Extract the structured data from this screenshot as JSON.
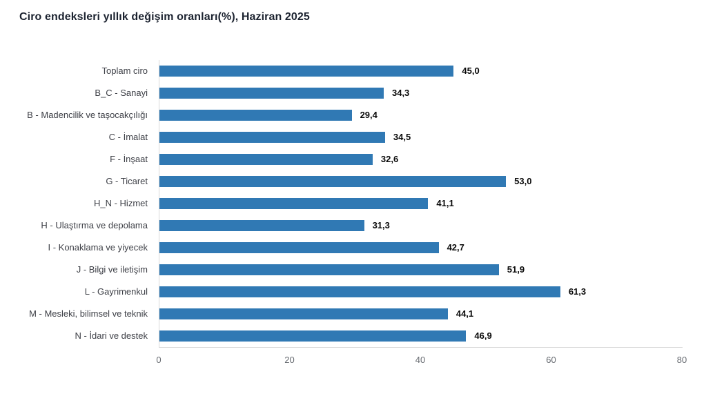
{
  "header": {
    "title": "Ciro endeksleri yıllık değişim oranları(%), Haziran 2025"
  },
  "chart_data": {
    "type": "bar",
    "orientation": "horizontal",
    "title": "Ciro endeksleri yıllık değişim oranları(%), Haziran 2025",
    "categories": [
      "Toplam ciro",
      "B_C - Sanayi",
      "B - Madencilik ve taşocakçılığı",
      "C - İmalat",
      "F - İnşaat",
      "G - Ticaret",
      "H_N - Hizmet",
      "H - Ulaştırma ve depolama",
      "I - Konaklama ve yiyecek",
      "J - Bilgi ve iletişim",
      "L - Gayrimenkul",
      "M - Mesleki, bilimsel ve teknik",
      "N - İdari ve destek"
    ],
    "values": [
      45.0,
      34.3,
      29.4,
      34.5,
      32.6,
      53.0,
      41.1,
      31.3,
      42.7,
      51.9,
      61.3,
      44.1,
      46.9
    ],
    "value_labels": [
      "45,0",
      "34,3",
      "29,4",
      "34,5",
      "32,6",
      "53,0",
      "41,1",
      "31,3",
      "42,7",
      "51,9",
      "61,3",
      "44,1",
      "46,9"
    ],
    "xlabel": "",
    "ylabel": "",
    "xlim": [
      0,
      80
    ],
    "x_ticks": [
      "0",
      "20",
      "40",
      "60",
      "80"
    ],
    "bar_color": "#3079b4",
    "axis_line_color": "#d9d9d9",
    "grid": false,
    "legend": false
  }
}
